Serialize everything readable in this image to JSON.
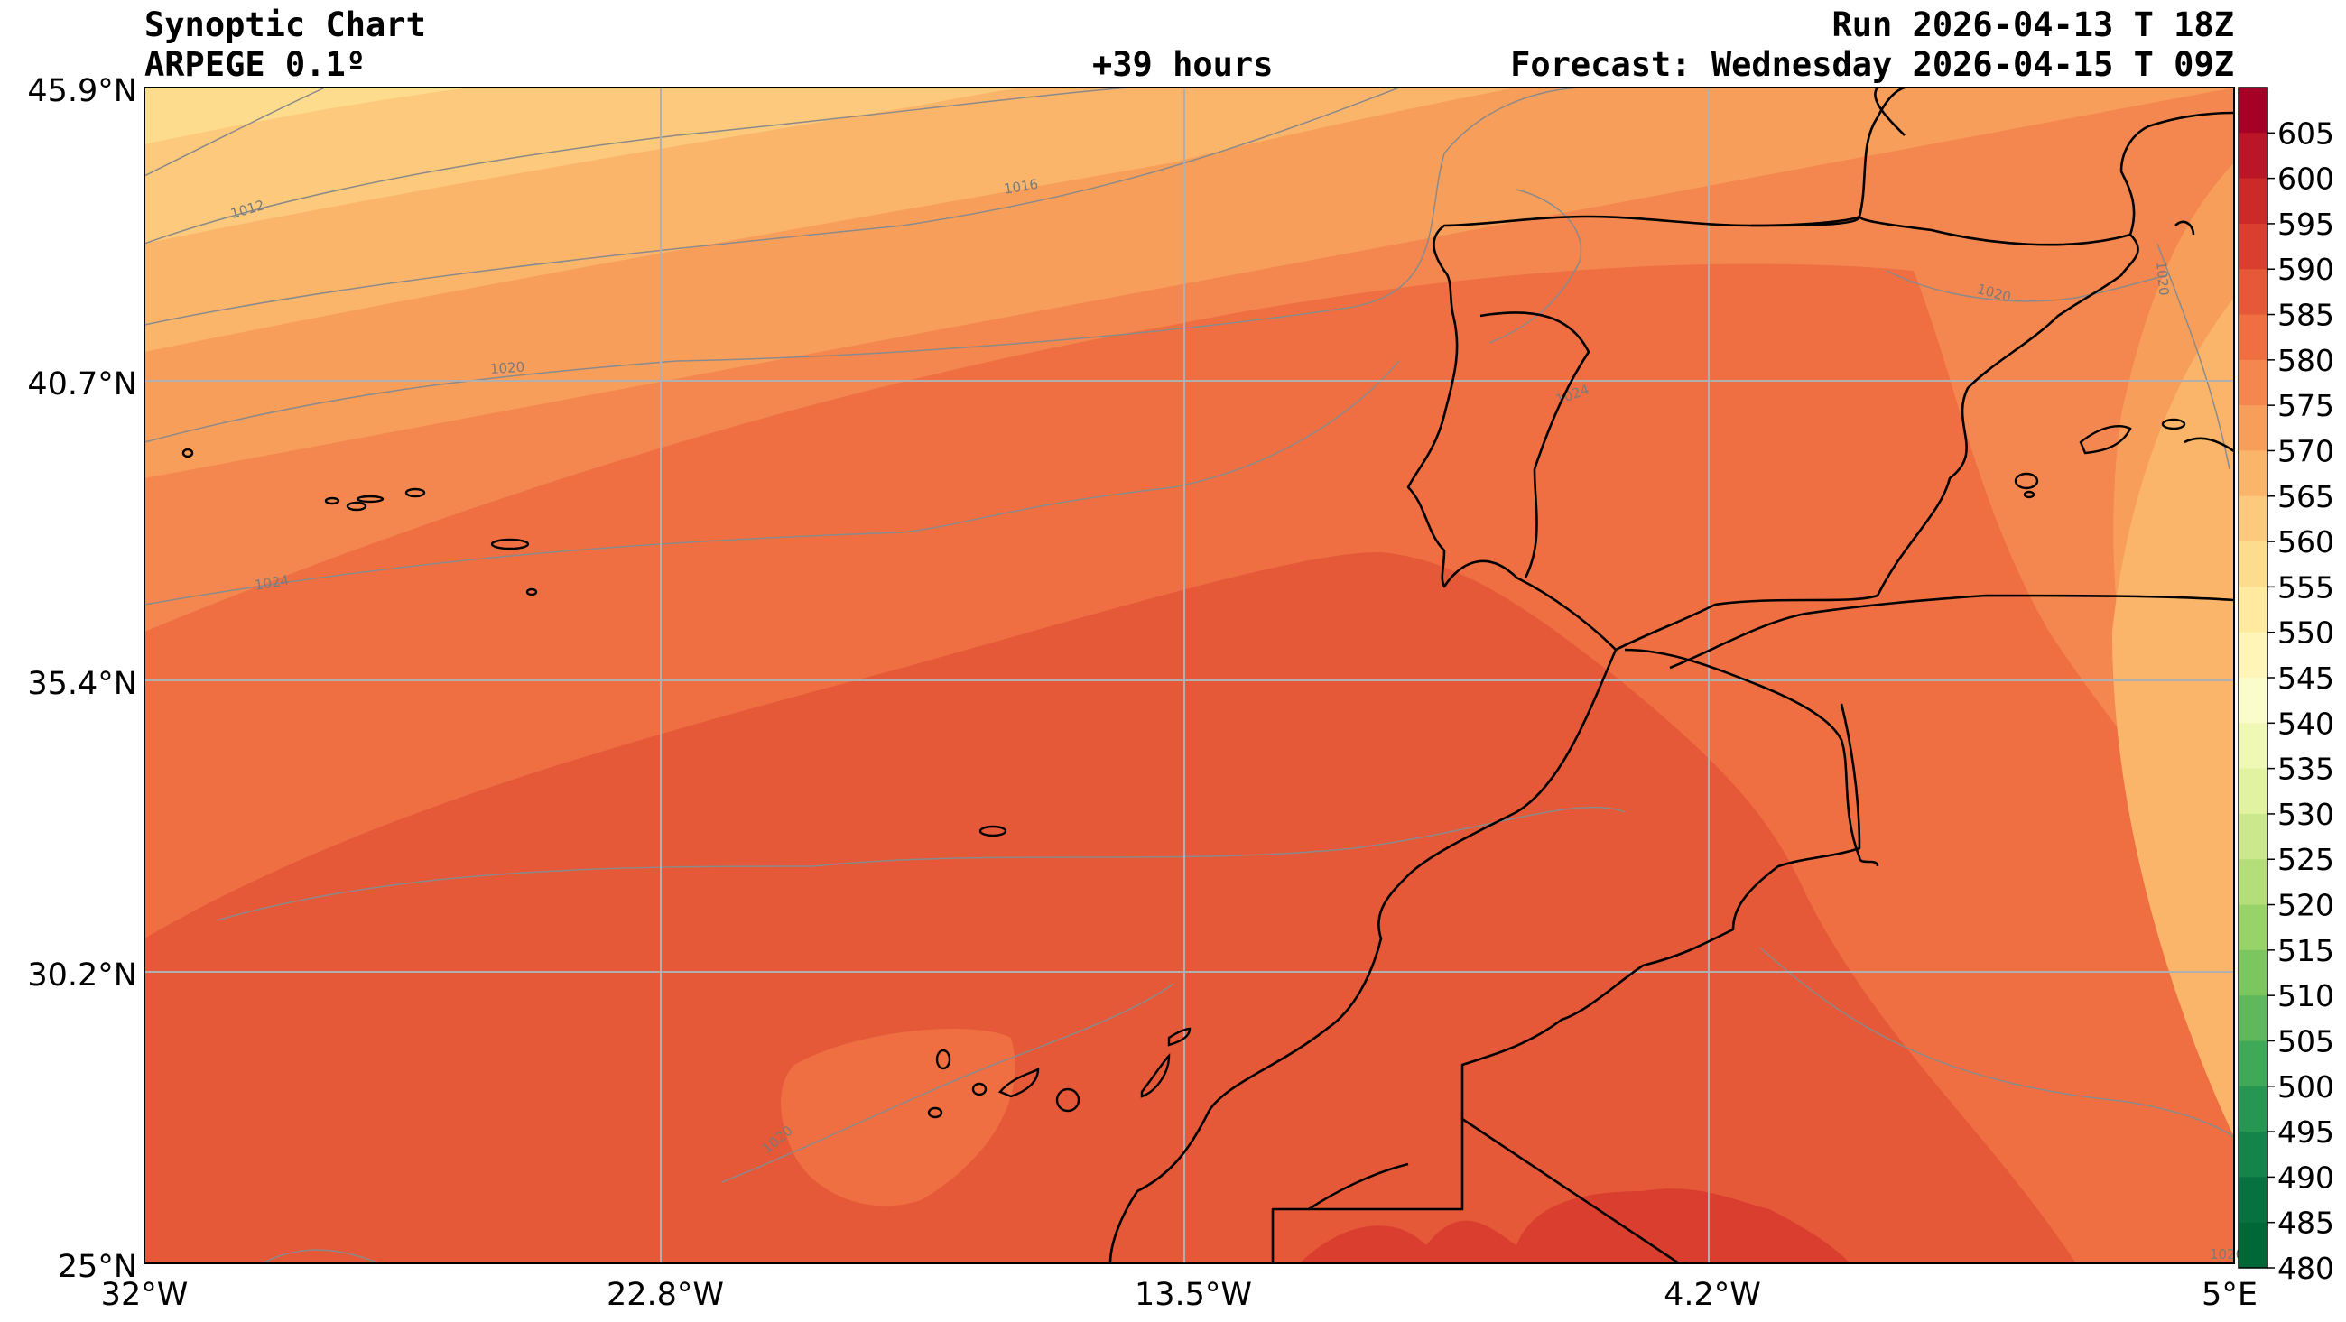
{
  "header": {
    "title": "Synoptic Chart",
    "model": "ARPEGE 0.1º",
    "lead": "+39 hours",
    "run": "Run 2026-04-13 T 18Z",
    "forecast": "Forecast: Wednesday 2026-04-15 T 09Z"
  },
  "axes": {
    "lat_labels": [
      "45.9°N",
      "40.7°N",
      "35.4°N",
      "30.2°N",
      "25°N"
    ],
    "lon_labels": [
      "32°W",
      "22.8°W",
      "13.5°W",
      "4.2°W",
      "5°E"
    ]
  },
  "colorbar": {
    "levels": [
      "605",
      "600",
      "595",
      "590",
      "585",
      "580",
      "575",
      "570",
      "565",
      "560",
      "555",
      "550",
      "545",
      "540",
      "535",
      "530",
      "525",
      "520",
      "515",
      "510",
      "505",
      "500",
      "495",
      "490",
      "485",
      "480"
    ],
    "colors": [
      "#a50026",
      "#bb1628",
      "#cc2a29",
      "#d93e2e",
      "#e55838",
      "#ef6f43",
      "#f4874f",
      "#f89e5b",
      "#fbb56b",
      "#fdc97c",
      "#fedc8e",
      "#ffeaa0",
      "#fff5b8",
      "#fbfccb",
      "#f0f8b5",
      "#e1f2a0",
      "#cbe98c",
      "#b3de7a",
      "#98d36a",
      "#7cc65f",
      "#5fb95c",
      "#40a958",
      "#269652",
      "#15844a",
      "#087140",
      "#006837"
    ]
  },
  "isobars": {
    "labels": [
      "1012",
      "1016",
      "1020",
      "1024",
      "1020",
      "1020",
      "1024",
      "1020",
      "1020"
    ],
    "line_color": "#8a8a8a"
  },
  "map": {
    "land_outline_color": "#000000",
    "grid_color": "#b0b0b0"
  }
}
